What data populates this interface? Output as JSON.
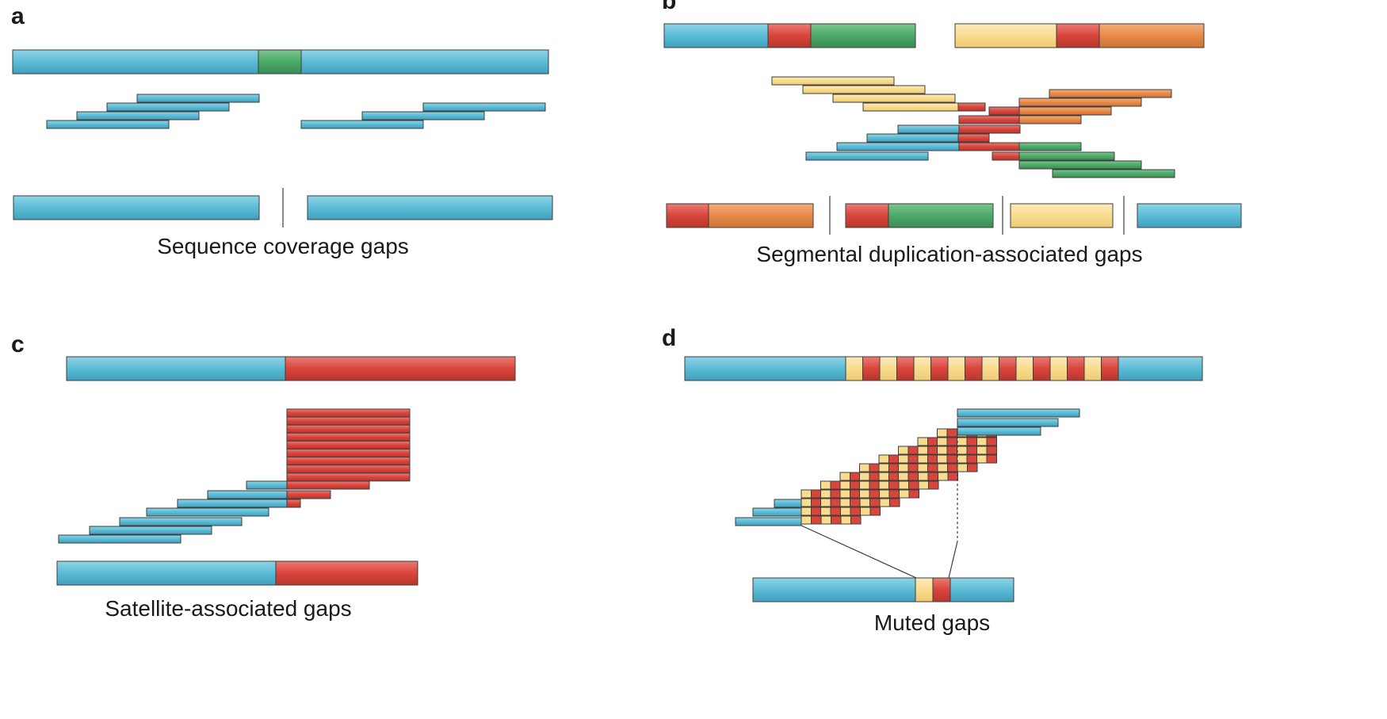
{
  "colors": {
    "unique": "#5bbcd6",
    "repeat_green": "#4caa68",
    "repeat_red": "#d9453c",
    "repeat_orange": "#e88a48",
    "repeat_yellow": "#f9dc8e",
    "outline": "#3d3d3d"
  },
  "panels": [
    {
      "letter": "a",
      "caption": "Sequence coverage gaps"
    },
    {
      "letter": "b",
      "caption": "Segmental duplication-associated gaps"
    },
    {
      "letter": "c",
      "caption": "Satellite-associated gaps"
    },
    {
      "letter": "d",
      "caption": "Muted gaps"
    }
  ]
}
